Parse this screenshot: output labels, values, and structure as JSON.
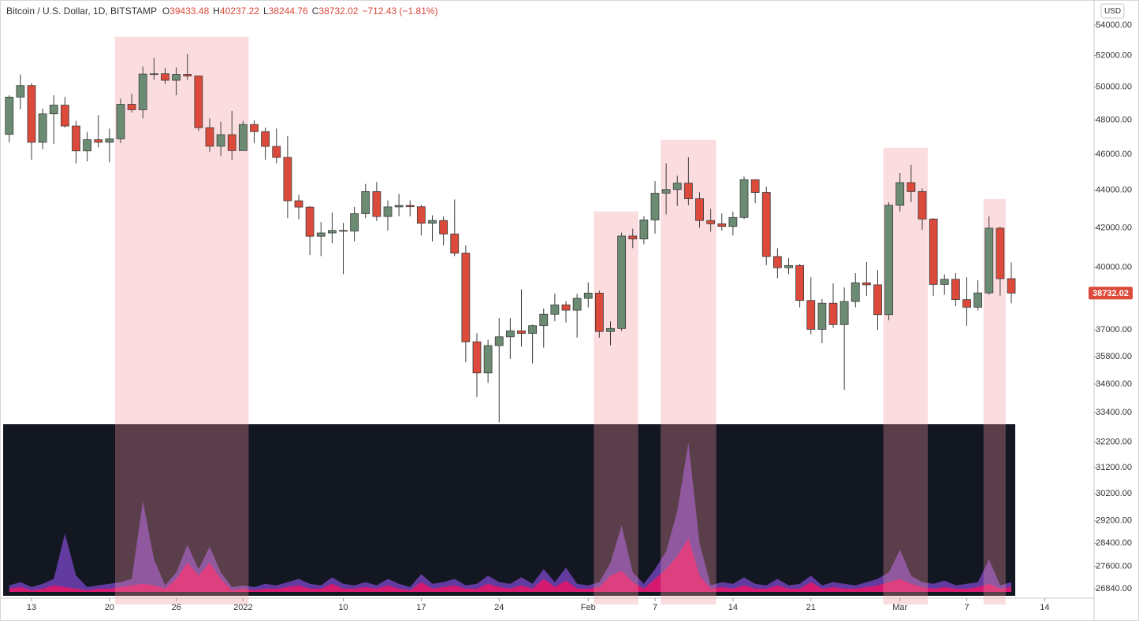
{
  "header": {
    "title": "Bitcoin / U.S. Dollar, 1D, BITSTAMP",
    "items": [
      {
        "label": "O",
        "value": 39433.48
      },
      {
        "label": "H",
        "value": 40237.22
      },
      {
        "label": "L",
        "value": 38244.76
      },
      {
        "label": "C",
        "value": 38732.02
      }
    ],
    "change": "−712.43 (−1.81%)"
  },
  "currency": "USD",
  "chart_data": [
    {
      "type": "candlestick",
      "log_scale": true,
      "up_color": "#6b8c73",
      "down_color": "#dc4a3b",
      "highlight_color": "rgba(244,150,160,0.32)",
      "x": [
        "Dec 11",
        "Dec 12",
        "Dec 13",
        "Dec 14",
        "Dec 15",
        "Dec 16",
        "Dec 17",
        "Dec 18",
        "Dec 19",
        "Dec 20",
        "Dec 21",
        "Dec 22",
        "Dec 23",
        "Dec 24",
        "Dec 25",
        "Dec 26",
        "Dec 27",
        "Dec 28",
        "Dec 29",
        "Dec 30",
        "Dec 31",
        "Jan 1",
        "Jan 2",
        "Jan 3",
        "Jan 4",
        "Jan 5",
        "Jan 6",
        "Jan 7",
        "Jan 8",
        "Jan 9",
        "Jan 10",
        "Jan 11",
        "Jan 12",
        "Jan 13",
        "Jan 14",
        "Jan 15",
        "Jan 16",
        "Jan 17",
        "Jan 18",
        "Jan 19",
        "Jan 20",
        "Jan 21",
        "Jan 22",
        "Jan 23",
        "Jan 24",
        "Jan 25",
        "Jan 26",
        "Jan 27",
        "Jan 28",
        "Jan 29",
        "Jan 30",
        "Jan 31",
        "Feb 1",
        "Feb 2",
        "Feb 3",
        "Feb 4",
        "Feb 5",
        "Feb 6",
        "Feb 7",
        "Feb 8",
        "Feb 9",
        "Feb 10",
        "Feb 11",
        "Feb 12",
        "Feb 13",
        "Feb 14",
        "Feb 15",
        "Feb 16",
        "Feb 17",
        "Feb 18",
        "Feb 19",
        "Feb 20",
        "Feb 21",
        "Feb 22",
        "Feb 23",
        "Feb 24",
        "Feb 25",
        "Feb 26",
        "Feb 27",
        "Feb 28",
        "Mar 1",
        "Mar 2",
        "Mar 3",
        "Mar 4",
        "Mar 5",
        "Mar 6",
        "Mar 7",
        "Mar 8",
        "Mar 9",
        "Mar 10",
        "Mar 11"
      ],
      "open": [
        47160,
        49390,
        50100,
        46700,
        48370,
        48900,
        47650,
        46200,
        46850,
        46700,
        46900,
        48950,
        48620,
        50820,
        50840,
        50430,
        50800,
        50700,
        47550,
        46470,
        47140,
        46220,
        47740,
        47320,
        46460,
        45830,
        43430,
        43090,
        41560,
        41730,
        41860,
        41830,
        42740,
        43930,
        42590,
        43100,
        43180,
        43110,
        42240,
        42380,
        41680,
        40700,
        36460,
        35080,
        36290,
        36690,
        36960,
        36840,
        37200,
        37730,
        38170,
        37920,
        38480,
        38730,
        36930,
        37070,
        41570,
        41420,
        42410,
        43840,
        44040,
        44390,
        43540,
        42380,
        42210,
        42070,
        42540,
        44580,
        43880,
        40530,
        39970,
        40080,
        38380,
        37030,
        38250,
        37250,
        38330,
        39230,
        39130,
        37710,
        43190,
        44420,
        43930,
        42460,
        39150,
        39400,
        38420,
        38060,
        38740,
        41980,
        39433.48
      ],
      "high": [
        49500,
        50800,
        50250,
        48700,
        49500,
        49400,
        47950,
        47300,
        48300,
        47500,
        49300,
        49600,
        51300,
        51850,
        51200,
        51250,
        52100,
        50700,
        48100,
        47900,
        48550,
        47950,
        47990,
        47550,
        47500,
        47050,
        43750,
        43150,
        42300,
        42800,
        42250,
        43100,
        44350,
        44450,
        43450,
        43800,
        43450,
        43200,
        42650,
        42600,
        43500,
        41100,
        36850,
        36550,
        37550,
        37550,
        38900,
        37250,
        38000,
        38700,
        38350,
        38700,
        39250,
        38850,
        37400,
        41750,
        41950,
        42600,
        44500,
        45500,
        44800,
        45850,
        43900,
        43000,
        42750,
        42850,
        44750,
        44600,
        44200,
        40950,
        40450,
        40150,
        39500,
        38450,
        39200,
        39000,
        39700,
        40250,
        39850,
        43350,
        44950,
        45400,
        44100,
        42500,
        39650,
        39700,
        39500,
        39350,
        42600,
        42050,
        40237.22
      ],
      "low": [
        46700,
        48650,
        45700,
        46300,
        46600,
        47550,
        45500,
        45600,
        46400,
        45550,
        46650,
        48450,
        48100,
        50450,
        50200,
        49500,
        50450,
        47350,
        46150,
        45900,
        45700,
        46200,
        46650,
        45700,
        45500,
        42500,
        42450,
        40600,
        40550,
        41200,
        39650,
        41300,
        42500,
        42350,
        41850,
        42600,
        42600,
        41600,
        41300,
        41100,
        40550,
        35550,
        34050,
        34650,
        33000,
        35700,
        36250,
        35500,
        36200,
        37400,
        37350,
        36650,
        38050,
        36650,
        36300,
        36950,
        40950,
        41150,
        41700,
        42700,
        43150,
        43200,
        42000,
        41800,
        41850,
        41600,
        42450,
        43300,
        40100,
        39450,
        39650,
        38050,
        36800,
        36400,
        37100,
        34350,
        38050,
        38600,
        37000,
        37450,
        42850,
        43350,
        41900,
        38600,
        38650,
        38100,
        37200,
        37900,
        38650,
        38600,
        38244.76
      ],
      "close": [
        49390,
        50100,
        46700,
        48370,
        48900,
        47650,
        46200,
        46850,
        46700,
        46900,
        48950,
        48620,
        50820,
        50840,
        50430,
        50800,
        50700,
        47550,
        46470,
        47140,
        46220,
        47740,
        47320,
        46460,
        45830,
        43430,
        43090,
        41560,
        41730,
        41860,
        41830,
        42740,
        43930,
        42590,
        43100,
        43180,
        43110,
        42240,
        42380,
        41680,
        40700,
        36460,
        35080,
        36290,
        36690,
        36960,
        36840,
        37200,
        37730,
        38170,
        37920,
        38480,
        38730,
        36930,
        37070,
        41570,
        41420,
        42410,
        43840,
        44040,
        44390,
        43540,
        42380,
        42210,
        42070,
        42540,
        44580,
        43880,
        40530,
        39970,
        40080,
        38380,
        37030,
        38250,
        37250,
        38330,
        39230,
        39130,
        37710,
        43190,
        44420,
        43930,
        42460,
        39150,
        39400,
        38420,
        38060,
        38740,
        41980,
        39430,
        38732.02
      ],
      "ylim": [
        26530,
        55710
      ],
      "yticks": [
        {
          "value": 54000,
          "label": "54000.00"
        },
        {
          "value": 52000,
          "label": "52000.00"
        },
        {
          "value": 50000,
          "label": "50000.00"
        },
        {
          "value": 48000,
          "label": "48000.00"
        },
        {
          "value": 46000,
          "label": "46000.00"
        },
        {
          "value": 44000,
          "label": "44000.00"
        },
        {
          "value": 42000,
          "label": "42000.00"
        },
        {
          "value": 40000,
          "label": "40000.00"
        },
        {
          "value": 37000,
          "label": "37000.00"
        },
        {
          "value": 35800,
          "label": "35800.00"
        },
        {
          "value": 34600,
          "label": "34600.00"
        },
        {
          "value": 33400,
          "label": "33400.00"
        },
        {
          "value": 32200,
          "label": "32200.00"
        },
        {
          "value": 31200,
          "label": "31200.00"
        },
        {
          "value": 30200,
          "label": "30200.00"
        },
        {
          "value": 29200,
          "label": "29200.00"
        },
        {
          "value": 28400,
          "label": "28400.00"
        },
        {
          "value": 27600,
          "label": "27600.00"
        },
        {
          "value": 26840,
          "label": "26840.00"
        }
      ],
      "xticks": [
        {
          "value": "Dec 13",
          "label": "13"
        },
        {
          "value": "Dec 20",
          "label": "20"
        },
        {
          "value": "Dec 26",
          "label": "26"
        },
        {
          "value": "Jan 1",
          "label": "2022"
        },
        {
          "value": "Jan 10",
          "label": "10"
        },
        {
          "value": "Jan 17",
          "label": "17"
        },
        {
          "value": "Jan 24",
          "label": "24"
        },
        {
          "value": "Feb 1",
          "label": "Feb"
        },
        {
          "value": "Feb 7",
          "label": "7"
        },
        {
          "value": "Feb 14",
          "label": "14"
        },
        {
          "value": "Feb 21",
          "label": "21"
        },
        {
          "value": "Mar 1",
          "label": "Mar"
        },
        {
          "value": "Mar 7",
          "label": "7"
        },
        {
          "value": "Mar 14",
          "label": "14"
        }
      ],
      "highlights": [
        {
          "start": "Dec 21",
          "end": "Jan 1"
        },
        {
          "start": "Feb 2",
          "end": "Feb 5"
        },
        {
          "start": "Feb 8",
          "end": "Feb 12"
        },
        {
          "start": "Feb 28",
          "end": "Mar 3"
        },
        {
          "start": "Mar 9",
          "end": "Mar 10"
        }
      ]
    },
    {
      "type": "area",
      "background": "#131722",
      "ylim": [
        0,
        100
      ],
      "series": [
        {
          "color": "#6b3fae",
          "values": [
            4,
            6,
            3,
            5,
            8,
            36,
            10,
            3,
            4,
            5,
            6,
            8,
            56,
            20,
            4,
            12,
            29,
            14,
            28,
            12,
            3,
            4,
            3,
            5,
            4,
            6,
            8,
            5,
            4,
            9,
            5,
            4,
            6,
            4,
            8,
            5,
            3,
            11,
            5,
            6,
            8,
            4,
            5,
            10,
            6,
            5,
            9,
            5,
            14,
            6,
            15,
            5,
            4,
            6,
            18,
            41,
            12,
            5,
            14,
            25,
            50,
            92,
            30,
            4,
            6,
            5,
            9,
            5,
            4,
            8,
            4,
            5,
            10,
            4,
            6,
            5,
            4,
            6,
            8,
            12,
            26,
            10,
            6,
            5,
            7,
            4,
            5,
            6,
            20,
            4,
            6
          ]
        },
        {
          "color": "#e2166b",
          "values": [
            2,
            3,
            1,
            2,
            4,
            3,
            2,
            1,
            2,
            2,
            3,
            4,
            5,
            4,
            2,
            8,
            18,
            10,
            18,
            8,
            1,
            2,
            1,
            2,
            2,
            3,
            4,
            2,
            2,
            5,
            2,
            2,
            3,
            2,
            4,
            2,
            1,
            6,
            2,
            3,
            4,
            2,
            2,
            5,
            3,
            2,
            4,
            2,
            8,
            3,
            7,
            2,
            2,
            3,
            10,
            13,
            6,
            2,
            8,
            14,
            22,
            33,
            10,
            2,
            3,
            2,
            4,
            2,
            2,
            4,
            2,
            2,
            6,
            2,
            3,
            2,
            2,
            3,
            4,
            6,
            8,
            5,
            3,
            2,
            3,
            2,
            2,
            3,
            5,
            2,
            3
          ]
        }
      ]
    }
  ]
}
